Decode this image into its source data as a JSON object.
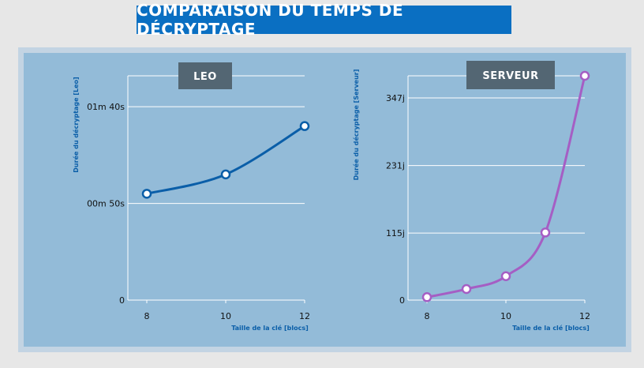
{
  "title": "COMPARAISON DU TEMPS DE DÉCRYPTAGE",
  "colors": {
    "banner": "#0a6fc2",
    "panel_bg": "#93bbd8",
    "leo_series": "#0a5ea8",
    "serveur_series": "#a55ec4",
    "title_box": "#536673"
  },
  "chart_data": [
    {
      "type": "line",
      "title": "LEO",
      "xlabel": "Taille de la clé [blocs]",
      "ylabel": "Durée du décryptage [Leo]",
      "x_ticks": [
        8,
        10,
        12
      ],
      "y_ticks": [
        {
          "value": 0,
          "label": "0"
        },
        {
          "value": 50,
          "label": "00m 50s"
        },
        {
          "value": 100,
          "label": "01m 40s"
        }
      ],
      "ylim": [
        0,
        116
      ],
      "xlim": [
        7.5,
        12.5
      ],
      "grid": true,
      "series": [
        {
          "x": [
            8,
            10,
            12
          ],
          "y": [
            55,
            65,
            90
          ]
        }
      ]
    },
    {
      "type": "line",
      "title": "SERVEUR",
      "xlabel": "Taille de la clé [blocs]",
      "ylabel": "Durée du décryptage [Serveur]",
      "x_ticks": [
        8,
        10,
        12
      ],
      "y_ticks": [
        {
          "value": 0,
          "label": "0"
        },
        {
          "value": 115,
          "label": "115j"
        },
        {
          "value": 231,
          "label": "231j"
        },
        {
          "value": 347,
          "label": "347j"
        }
      ],
      "ylim": [
        0,
        385
      ],
      "xlim": [
        7.5,
        12.5
      ],
      "grid": true,
      "series": [
        {
          "x": [
            8,
            9,
            10,
            11,
            12
          ],
          "y": [
            5,
            19,
            41,
            116,
            385
          ]
        }
      ]
    }
  ]
}
